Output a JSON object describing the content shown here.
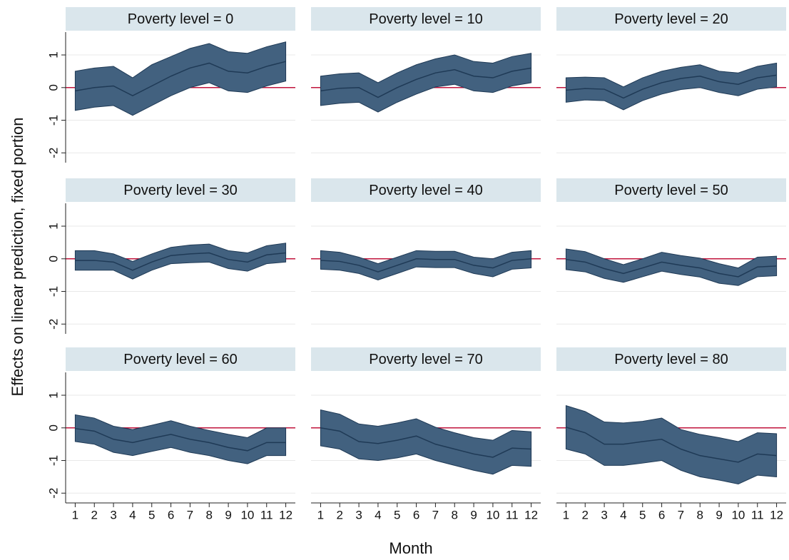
{
  "chart_data": [
    {
      "type": "line",
      "title": "Poverty level = 0",
      "x": [
        1,
        2,
        3,
        4,
        5,
        6,
        7,
        8,
        9,
        10,
        11,
        12
      ],
      "values": [
        -0.1,
        0,
        0.05,
        -0.25,
        0.05,
        0.35,
        0.6,
        0.75,
        0.5,
        0.45,
        0.65,
        0.8
      ],
      "upper": [
        0.5,
        0.6,
        0.65,
        0.3,
        0.7,
        0.95,
        1.2,
        1.35,
        1.1,
        1.05,
        1.25,
        1.4
      ],
      "lower": [
        -0.7,
        -0.6,
        -0.55,
        -0.85,
        -0.55,
        -0.25,
        0,
        0.15,
        -0.1,
        -0.15,
        0.05,
        0.2
      ],
      "color": "#1f3a56",
      "band_color": "#42617f",
      "xlim": [
        0.5,
        12.5
      ],
      "ylim": [
        -2.3,
        1.7
      ],
      "yticks": [
        -2,
        -1,
        0,
        1
      ],
      "grid": true,
      "refline": {
        "value": 0,
        "color": "#c0143c"
      }
    },
    {
      "type": "line",
      "title": "Poverty level = 10",
      "x": [
        1,
        2,
        3,
        4,
        5,
        6,
        7,
        8,
        9,
        10,
        11,
        12
      ],
      "values": [
        -0.1,
        -0.02,
        0,
        -0.3,
        0,
        0.25,
        0.45,
        0.55,
        0.35,
        0.3,
        0.5,
        0.6
      ],
      "upper": [
        0.35,
        0.42,
        0.45,
        0.15,
        0.45,
        0.7,
        0.88,
        1,
        0.8,
        0.75,
        0.95,
        1.05
      ],
      "lower": [
        -0.55,
        -0.48,
        -0.45,
        -0.75,
        -0.45,
        -0.2,
        0.02,
        0.1,
        -0.1,
        -0.15,
        0.05,
        0.15
      ],
      "color": "#1f3a56",
      "band_color": "#42617f",
      "xlim": [
        0.5,
        12.5
      ],
      "ylim": [
        -2.3,
        1.7
      ],
      "yticks": [
        -2,
        -1,
        0,
        1
      ],
      "grid": true,
      "refline": {
        "value": 0,
        "color": "#c0143c"
      }
    },
    {
      "type": "line",
      "title": "Poverty level = 20",
      "x": [
        1,
        2,
        3,
        4,
        5,
        6,
        7,
        8,
        9,
        10,
        11,
        12
      ],
      "values": [
        -0.08,
        -0.03,
        -0.05,
        -0.32,
        -0.05,
        0.15,
        0.28,
        0.35,
        0.18,
        0.1,
        0.3,
        0.38
      ],
      "upper": [
        0.3,
        0.32,
        0.3,
        0.02,
        0.3,
        0.5,
        0.62,
        0.7,
        0.5,
        0.45,
        0.65,
        0.75
      ],
      "lower": [
        -0.45,
        -0.38,
        -0.4,
        -0.68,
        -0.4,
        -0.2,
        -0.06,
        0,
        -0.15,
        -0.25,
        -0.05,
        0.02
      ],
      "color": "#1f3a56",
      "band_color": "#42617f",
      "xlim": [
        0.5,
        12.5
      ],
      "ylim": [
        -2.3,
        1.7
      ],
      "yticks": [
        -2,
        -1,
        0,
        1
      ],
      "grid": true,
      "refline": {
        "value": 0,
        "color": "#c0143c"
      }
    },
    {
      "type": "line",
      "title": "Poverty level = 30",
      "x": [
        1,
        2,
        3,
        4,
        5,
        6,
        7,
        8,
        9,
        10,
        11,
        12
      ],
      "values": [
        -0.05,
        -0.05,
        -0.1,
        -0.35,
        -0.1,
        0.1,
        0.15,
        0.18,
        -0.02,
        -0.1,
        0.12,
        0.18
      ],
      "upper": [
        0.25,
        0.25,
        0.15,
        -0.08,
        0.15,
        0.35,
        0.42,
        0.45,
        0.25,
        0.18,
        0.4,
        0.48
      ],
      "lower": [
        -0.35,
        -0.35,
        -0.35,
        -0.62,
        -0.35,
        -0.15,
        -0.12,
        -0.1,
        -0.3,
        -0.38,
        -0.15,
        -0.1
      ],
      "color": "#1f3a56",
      "band_color": "#42617f",
      "xlim": [
        0.5,
        12.5
      ],
      "ylim": [
        -2.3,
        1.7
      ],
      "yticks": [
        -2,
        -1,
        0,
        1
      ],
      "grid": true,
      "refline": {
        "value": 0,
        "color": "#c0143c"
      }
    },
    {
      "type": "line",
      "title": "Poverty level = 40",
      "x": [
        1,
        2,
        3,
        4,
        5,
        6,
        7,
        8,
        9,
        10,
        11,
        12
      ],
      "values": [
        -0.05,
        -0.08,
        -0.2,
        -0.4,
        -0.2,
        0,
        -0.02,
        -0.02,
        -0.2,
        -0.28,
        -0.05,
        0
      ],
      "upper": [
        0.25,
        0.2,
        0.05,
        -0.15,
        0.05,
        0.25,
        0.23,
        0.23,
        0.05,
        0,
        0.2,
        0.25
      ],
      "lower": [
        -0.32,
        -0.35,
        -0.45,
        -0.65,
        -0.45,
        -0.25,
        -0.27,
        -0.27,
        -0.45,
        -0.55,
        -0.32,
        -0.28
      ],
      "color": "#1f3a56",
      "band_color": "#42617f",
      "xlim": [
        0.5,
        12.5
      ],
      "ylim": [
        -2.3,
        1.7
      ],
      "yticks": [
        -2,
        -1,
        0,
        1
      ],
      "grid": true,
      "refline": {
        "value": 0,
        "color": "#c0143c"
      }
    },
    {
      "type": "line",
      "title": "Poverty level = 50",
      "x": [
        1,
        2,
        3,
        4,
        5,
        6,
        7,
        8,
        9,
        10,
        11,
        12
      ],
      "values": [
        -0.02,
        -0.1,
        -0.3,
        -0.45,
        -0.28,
        -0.1,
        -0.2,
        -0.28,
        -0.45,
        -0.55,
        -0.25,
        -0.22
      ],
      "upper": [
        0.3,
        0.22,
        0,
        -0.18,
        0,
        0.2,
        0.1,
        0.02,
        -0.15,
        -0.28,
        0.05,
        0.08
      ],
      "lower": [
        -0.33,
        -0.4,
        -0.6,
        -0.72,
        -0.55,
        -0.38,
        -0.48,
        -0.56,
        -0.75,
        -0.82,
        -0.55,
        -0.52
      ],
      "color": "#1f3a56",
      "band_color": "#42617f",
      "xlim": [
        0.5,
        12.5
      ],
      "ylim": [
        -2.3,
        1.7
      ],
      "yticks": [
        -2,
        -1,
        0,
        1
      ],
      "grid": true,
      "refline": {
        "value": 0,
        "color": "#c0143c"
      }
    },
    {
      "type": "line",
      "title": "Poverty level = 60",
      "x": [
        1,
        2,
        3,
        4,
        5,
        6,
        7,
        8,
        9,
        10,
        11,
        12
      ],
      "values": [
        -0.02,
        -0.1,
        -0.35,
        -0.45,
        -0.32,
        -0.2,
        -0.35,
        -0.45,
        -0.6,
        -0.7,
        -0.45,
        -0.45
      ],
      "upper": [
        0.4,
        0.3,
        0.05,
        -0.05,
        0.08,
        0.22,
        0.05,
        -0.08,
        -0.2,
        -0.3,
        0,
        0
      ],
      "lower": [
        -0.42,
        -0.5,
        -0.75,
        -0.85,
        -0.72,
        -0.6,
        -0.75,
        -0.85,
        -1,
        -1.1,
        -0.85,
        -0.85
      ],
      "color": "#1f3a56",
      "band_color": "#42617f",
      "xlim": [
        0.5,
        12.5
      ],
      "ylim": [
        -2.3,
        1.7
      ],
      "yticks": [
        -2,
        -1,
        0,
        1
      ],
      "xticks": [
        1,
        2,
        3,
        4,
        5,
        6,
        7,
        8,
        9,
        10,
        11,
        12
      ],
      "grid": true,
      "refline": {
        "value": 0,
        "color": "#c0143c"
      }
    },
    {
      "type": "line",
      "title": "Poverty level = 70",
      "x": [
        1,
        2,
        3,
        4,
        5,
        6,
        7,
        8,
        9,
        10,
        11,
        12
      ],
      "values": [
        0,
        -0.1,
        -0.42,
        -0.48,
        -0.38,
        -0.25,
        -0.5,
        -0.65,
        -0.8,
        -0.9,
        -0.62,
        -0.65
      ],
      "upper": [
        0.55,
        0.42,
        0.12,
        0.05,
        0.15,
        0.28,
        0.02,
        -0.15,
        -0.3,
        -0.38,
        -0.08,
        -0.12
      ],
      "lower": [
        -0.55,
        -0.65,
        -0.95,
        -1,
        -0.92,
        -0.8,
        -1,
        -1.15,
        -1.3,
        -1.42,
        -1.15,
        -1.18
      ],
      "color": "#1f3a56",
      "band_color": "#42617f",
      "xlim": [
        0.5,
        12.5
      ],
      "ylim": [
        -2.3,
        1.7
      ],
      "yticks": [
        -2,
        -1,
        0,
        1
      ],
      "xticks": [
        1,
        2,
        3,
        4,
        5,
        6,
        7,
        8,
        9,
        10,
        11,
        12
      ],
      "grid": true,
      "refline": {
        "value": 0,
        "color": "#c0143c"
      }
    },
    {
      "type": "line",
      "title": "Poverty level = 80",
      "x": [
        1,
        2,
        3,
        4,
        5,
        6,
        7,
        8,
        9,
        10,
        11,
        12
      ],
      "values": [
        0.02,
        -0.15,
        -0.5,
        -0.5,
        -0.42,
        -0.35,
        -0.65,
        -0.85,
        -0.95,
        -1.05,
        -0.8,
        -0.85
      ],
      "upper": [
        0.68,
        0.5,
        0.18,
        0.15,
        0.2,
        0.3,
        -0.05,
        -0.2,
        -0.3,
        -0.42,
        -0.15,
        -0.18
      ],
      "lower": [
        -0.65,
        -0.8,
        -1.15,
        -1.15,
        -1.08,
        -1,
        -1.3,
        -1.5,
        -1.6,
        -1.72,
        -1.45,
        -1.5
      ],
      "color": "#1f3a56",
      "band_color": "#42617f",
      "xlim": [
        0.5,
        12.5
      ],
      "ylim": [
        -2.3,
        1.7
      ],
      "yticks": [
        -2,
        -1,
        0,
        1
      ],
      "xticks": [
        1,
        2,
        3,
        4,
        5,
        6,
        7,
        8,
        9,
        10,
        11,
        12
      ],
      "grid": true,
      "refline": {
        "value": 0,
        "color": "#c0143c"
      }
    }
  ],
  "xlabel": "Month",
  "ylabel": "Effects on linear prediction, fixed portion"
}
